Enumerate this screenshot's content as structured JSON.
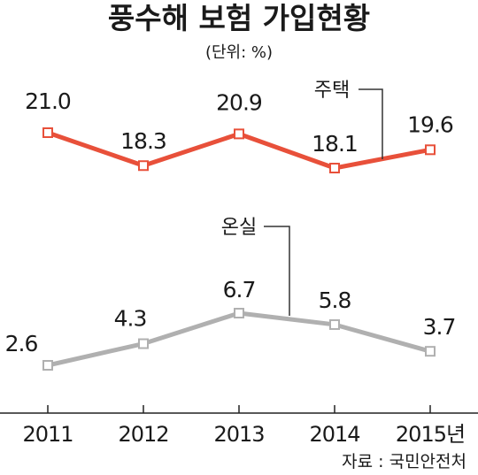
{
  "chart_data": {
    "type": "line",
    "title": "풍수해 보험 가입현황",
    "unit": "(단위: %)",
    "categories": [
      "2011",
      "2012",
      "2013",
      "2014",
      "2015년"
    ],
    "series": [
      {
        "name": "주택",
        "values": [
          21.0,
          18.3,
          20.9,
          18.1,
          19.6
        ],
        "labels": [
          "21.0",
          "18.3",
          "20.9",
          "18.1",
          "19.6"
        ],
        "color": "#e8503a"
      },
      {
        "name": "온실",
        "values": [
          2.6,
          4.3,
          6.7,
          5.8,
          3.7
        ],
        "labels": [
          "2.6",
          "4.3",
          "6.7",
          "5.8",
          "3.7"
        ],
        "color": "#b0b0b0"
      }
    ],
    "source": "자료 : 국민안전처"
  }
}
